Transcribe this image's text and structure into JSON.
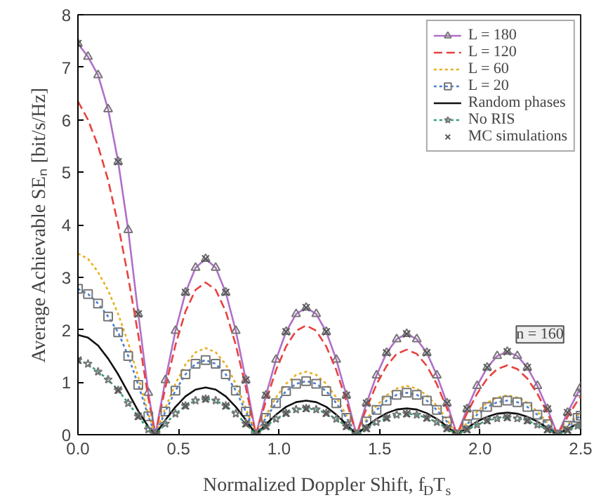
{
  "chart_data": {
    "type": "line",
    "xlabel": "Normalized Doppler Shift,  f$_{D}$T$_{s}$",
    "ylabel": "Average Achievable SEₙ [bit/s/Hz]",
    "x": [
      0,
      0.05,
      0.1,
      0.15,
      0.2,
      0.25,
      0.3,
      0.35,
      0.385,
      0.435,
      0.485,
      0.535,
      0.585,
      0.635,
      0.685,
      0.735,
      0.785,
      0.835,
      0.885,
      0.935,
      0.985,
      1.035,
      1.085,
      1.135,
      1.185,
      1.235,
      1.285,
      1.335,
      1.385,
      1.435,
      1.485,
      1.535,
      1.585,
      1.635,
      1.685,
      1.735,
      1.785,
      1.835,
      1.885,
      1.935,
      1.985,
      2.035,
      2.085,
      2.135,
      2.185,
      2.235,
      2.285,
      2.335,
      2.385,
      2.435,
      2.485,
      2.5
    ],
    "series": [
      {
        "name": "L = 180",
        "color": "#b070c8",
        "line_style": "solid",
        "marker": "triangle",
        "values": [
          7.45,
          7.2,
          6.85,
          6.2,
          5.2,
          3.9,
          2.3,
          0.8,
          0,
          1.04,
          1.98,
          2.71,
          3.18,
          3.35,
          3.18,
          2.71,
          1.98,
          1.04,
          0,
          0.75,
          1.43,
          1.96,
          2.3,
          2.42,
          2.3,
          1.96,
          1.43,
          0.75,
          0,
          0.6,
          1.13,
          1.56,
          1.82,
          1.92,
          1.82,
          1.56,
          1.13,
          0.6,
          0,
          0.49,
          0.93,
          1.28,
          1.5,
          1.58,
          1.5,
          1.28,
          0.93,
          0.49,
          0,
          0.42,
          0.79,
          0.9
        ]
      },
      {
        "name": "L = 120",
        "color": "#e8423f",
        "line_style": "dashed",
        "marker": "none",
        "values": [
          6.35,
          6.0,
          5.5,
          4.85,
          4.0,
          3.0,
          1.9,
          0.7,
          0,
          0.9,
          1.71,
          2.35,
          2.76,
          2.9,
          2.76,
          2.35,
          1.71,
          0.9,
          0,
          0.64,
          1.23,
          1.68,
          1.98,
          2.08,
          1.98,
          1.68,
          1.23,
          0.64,
          0,
          0.5,
          0.96,
          1.31,
          1.54,
          1.62,
          1.54,
          1.31,
          0.96,
          0.5,
          0,
          0.41,
          0.78,
          1.07,
          1.25,
          1.32,
          1.25,
          1.07,
          0.78,
          0.41,
          0,
          0.34,
          0.65,
          0.73
        ]
      },
      {
        "name": "L = 60",
        "color": "#e8b020",
        "line_style": "dotted",
        "marker": "none",
        "values": [
          3.45,
          3.35,
          3.1,
          2.75,
          2.3,
          1.75,
          1.1,
          0.4,
          0,
          0.51,
          0.97,
          1.34,
          1.57,
          1.65,
          1.57,
          1.34,
          0.97,
          0.51,
          0,
          0.37,
          0.71,
          0.97,
          1.14,
          1.2,
          1.14,
          0.97,
          0.71,
          0.37,
          0,
          0.29,
          0.55,
          0.75,
          0.88,
          0.93,
          0.88,
          0.75,
          0.55,
          0.29,
          0,
          0.23,
          0.44,
          0.61,
          0.71,
          0.75,
          0.71,
          0.61,
          0.44,
          0.23,
          0,
          0.19,
          0.37,
          0.41
        ]
      },
      {
        "name": "L = 20",
        "color": "#4a80d0",
        "line_style": "dotted",
        "marker": "square",
        "values": [
          2.78,
          2.68,
          2.5,
          2.25,
          1.95,
          1.5,
          0.95,
          0.35,
          0,
          0.44,
          0.84,
          1.15,
          1.35,
          1.42,
          1.35,
          1.15,
          0.84,
          0.44,
          0,
          0.32,
          0.6,
          0.83,
          0.97,
          1.02,
          0.97,
          0.83,
          0.6,
          0.32,
          0,
          0.25,
          0.47,
          0.65,
          0.76,
          0.8,
          0.76,
          0.65,
          0.47,
          0.25,
          0,
          0.2,
          0.38,
          0.53,
          0.62,
          0.65,
          0.62,
          0.53,
          0.38,
          0.2,
          0,
          0.17,
          0.32,
          0.36
        ]
      },
      {
        "name": "Random phases",
        "color": "#111111",
        "line_style": "solid",
        "marker": "none",
        "values": [
          1.9,
          1.85,
          1.7,
          1.45,
          1.15,
          0.8,
          0.45,
          0.15,
          0,
          0.28,
          0.53,
          0.73,
          0.86,
          0.9,
          0.86,
          0.73,
          0.53,
          0.28,
          0,
          0.2,
          0.38,
          0.53,
          0.62,
          0.65,
          0.62,
          0.53,
          0.38,
          0.2,
          0,
          0.16,
          0.3,
          0.41,
          0.48,
          0.5,
          0.48,
          0.41,
          0.3,
          0.16,
          0,
          0.13,
          0.25,
          0.34,
          0.4,
          0.42,
          0.4,
          0.34,
          0.25,
          0.13,
          0,
          0.11,
          0.21,
          0.24
        ]
      },
      {
        "name": "No RIS",
        "color": "#30a070",
        "line_style": "dotted",
        "marker": "star",
        "values": [
          1.42,
          1.35,
          1.2,
          1.05,
          0.85,
          0.6,
          0.35,
          0.1,
          0,
          0.21,
          0.4,
          0.55,
          0.65,
          0.68,
          0.65,
          0.55,
          0.4,
          0.21,
          0,
          0.16,
          0.3,
          0.41,
          0.48,
          0.5,
          0.48,
          0.41,
          0.3,
          0.16,
          0,
          0.12,
          0.24,
          0.32,
          0.38,
          0.4,
          0.38,
          0.32,
          0.24,
          0.12,
          0,
          0.1,
          0.19,
          0.27,
          0.31,
          0.33,
          0.31,
          0.27,
          0.19,
          0.1,
          0,
          0.09,
          0.17,
          0.19
        ]
      },
      {
        "name": "MC simulations",
        "type": "scatter",
        "color": "#555555",
        "marker": "cross",
        "x": [
          0,
          0.2,
          0.3,
          0.385,
          0.535,
          0.635,
          0.735,
          0.835,
          0.935,
          1.035,
          1.135,
          1.235,
          1.335,
          1.435,
          1.535,
          1.635,
          1.735,
          1.835,
          1.935,
          2.035,
          2.135,
          2.235,
          2.335,
          2.435,
          0,
          0.2,
          0.3,
          0.385,
          0.535,
          0.635,
          0.735,
          0.835,
          0.935,
          1.035,
          1.135,
          1.235,
          1.335,
          1.435,
          1.535,
          1.635,
          1.735,
          1.835,
          1.935,
          2.035,
          2.135,
          2.235,
          2.335,
          2.435
        ],
        "values": [
          7.45,
          5.2,
          2.3,
          0,
          2.71,
          3.35,
          2.71,
          1.04,
          0.75,
          1.96,
          2.42,
          1.96,
          0.75,
          0.6,
          1.56,
          1.92,
          1.56,
          0.6,
          0.49,
          1.28,
          1.58,
          1.28,
          0.49,
          0.42,
          1.42,
          0.85,
          0.35,
          0,
          0.55,
          0.68,
          0.55,
          0.21,
          0.16,
          0.41,
          0.5,
          0.41,
          0.16,
          0.12,
          0.32,
          0.4,
          0.32,
          0.12,
          0.1,
          0.27,
          0.33,
          0.27,
          0.1,
          0.09
        ]
      }
    ],
    "xlim": [
      0,
      2.5
    ],
    "xticks": [
      {
        "value": 0,
        "label": "0.0"
      },
      {
        "value": 0.5,
        "label": "0.5"
      },
      {
        "value": 1,
        "label": "1.0"
      },
      {
        "value": 1.5,
        "label": "1.5"
      },
      {
        "value": 2,
        "label": "2.0"
      },
      {
        "value": 2.5,
        "label": "2.5"
      }
    ],
    "ylim": [
      0,
      8
    ],
    "yticks": [
      0,
      1,
      2,
      3,
      4,
      5,
      6,
      7,
      8
    ],
    "annotations": [
      "n = 160"
    ],
    "legend": "top right",
    "grid": false
  }
}
